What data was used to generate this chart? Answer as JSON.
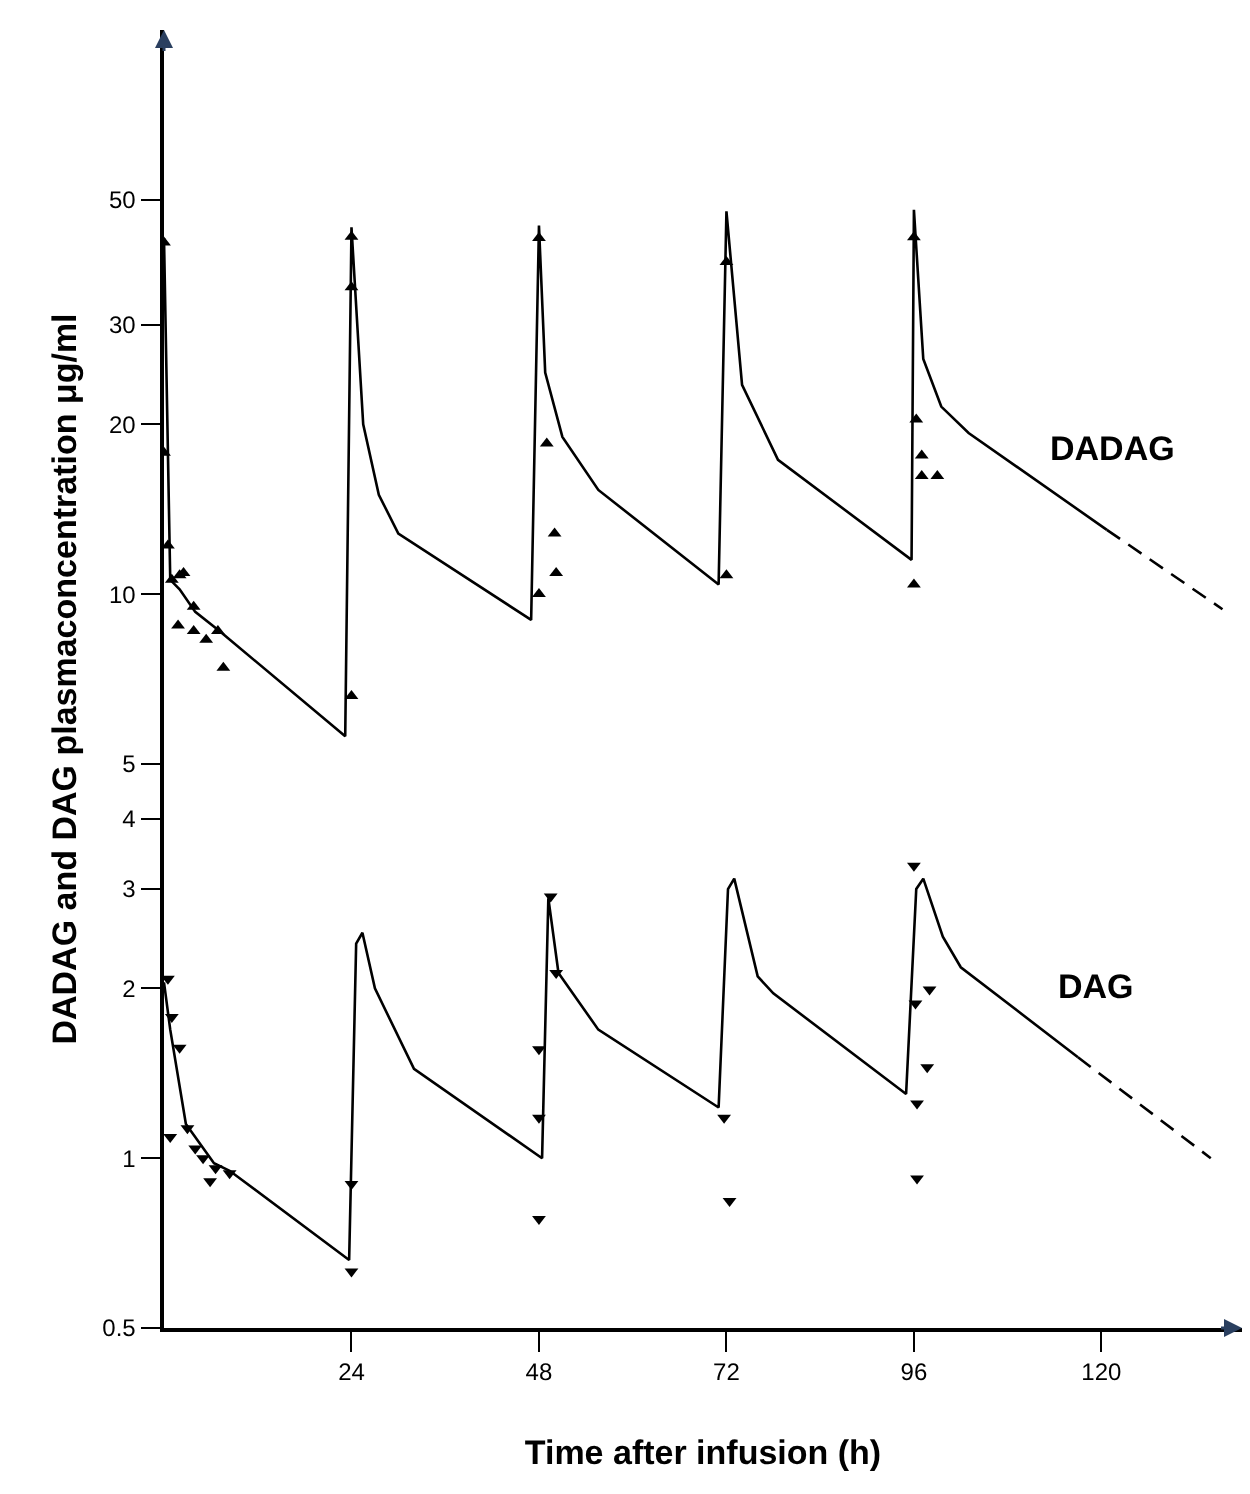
{
  "chart_data": {
    "type": "line",
    "xlabel": "Time after infusion (h)",
    "ylabel": "DADAG and DAG plasmaconcentration μg/ml",
    "log": "y",
    "xlim": [
      0,
      138
    ],
    "xticks": [
      24,
      48,
      72,
      96,
      120
    ],
    "ylim": [
      0.5,
      100
    ],
    "yticks": [
      0.5,
      1,
      2,
      3,
      4,
      5,
      10,
      20,
      30,
      50
    ],
    "series": [
      {
        "name": "DADAG",
        "color": "#000000",
        "line_style": "solid",
        "x": [
          0,
          0.8,
          2,
          4,
          7.1,
          23.2,
          24,
          25.5,
          27.5,
          30,
          47,
          48,
          48.8,
          51,
          55.6,
          71,
          72,
          74,
          78.6,
          95.7,
          96,
          97.2,
          99.5,
          103,
          120.7
        ],
        "values": [
          42.8,
          10.6,
          10.2,
          9.3,
          8.6,
          5.6,
          44.7,
          20,
          15,
          12.8,
          9.0,
          45,
          24.7,
          19,
          15.3,
          10.4,
          47.7,
          23.5,
          17.3,
          11.5,
          48,
          26.1,
          21.5,
          19.3,
          13.0
        ]
      },
      {
        "type": "line",
        "color": "#000000",
        "line_style": "dashed",
        "x": [
          120.7,
          135.5
        ],
        "values": [
          13.0,
          9.4
        ]
      },
      {
        "name": "DAG",
        "color": "#000000",
        "line_style": "solid",
        "x": [
          0,
          0.8,
          2.8,
          6.4,
          8.4,
          23.7,
          24.6,
          25.4,
          27,
          32,
          48.4,
          49.2,
          50.5,
          55.6,
          71,
          72.2,
          73,
          76,
          78,
          95,
          96.3,
          97.2,
          99.7,
          102,
          117
        ],
        "values": [
          2.05,
          1.69,
          1.15,
          0.98,
          0.95,
          0.66,
          2.4,
          2.51,
          2.0,
          1.44,
          1.0,
          2.89,
          2.13,
          1.69,
          1.23,
          3.0,
          3.13,
          2.1,
          1.96,
          1.3,
          3.0,
          3.13,
          2.47,
          2.18,
          1.51
        ]
      },
      {
        "type": "line",
        "color": "#000000",
        "line_style": "dashed",
        "x": [
          117,
          134
        ],
        "values": [
          1.51,
          1.0
        ]
      },
      {
        "type": "scatter",
        "marker": "triangle",
        "color": "#000000",
        "x": [
          0,
          0,
          0.5,
          1,
          2,
          2.5,
          3.8,
          1.8,
          3.8,
          5.4,
          6.9,
          7.6,
          24,
          24,
          24,
          48,
          48,
          49,
          50,
          50.2,
          72,
          72,
          96,
          96.3,
          97,
          97,
          99,
          96
        ],
        "values": [
          42,
          17.8,
          12.2,
          10.6,
          10.8,
          10.9,
          9.5,
          8.8,
          8.6,
          8.3,
          8.6,
          7.4,
          6.6,
          43,
          35,
          10,
          42.8,
          18.5,
          12.8,
          10.9,
          38.8,
          10.8,
          42.9,
          20.4,
          17.6,
          16.2,
          16.2,
          10.4
        ]
      },
      {
        "type": "scatter",
        "marker": "triangle-down",
        "color": "#000000",
        "x": [
          0.5,
          1,
          0.8,
          2,
          3,
          4,
          5,
          5.9,
          6.6,
          8.4,
          24,
          24,
          48,
          48,
          48,
          49.5,
          50.2,
          71.7,
          72.4,
          96,
          96.2,
          98,
          97.7,
          96.4,
          96.4
        ],
        "values": [
          2.08,
          1.78,
          1.09,
          1.57,
          1.13,
          1.04,
          1.0,
          0.91,
          0.96,
          0.94,
          0.9,
          0.63,
          1.56,
          1.18,
          0.78,
          2.91,
          2.13,
          1.18,
          0.84,
          3.3,
          1.88,
          1.99,
          1.45,
          1.25,
          0.92
        ]
      }
    ]
  }
}
